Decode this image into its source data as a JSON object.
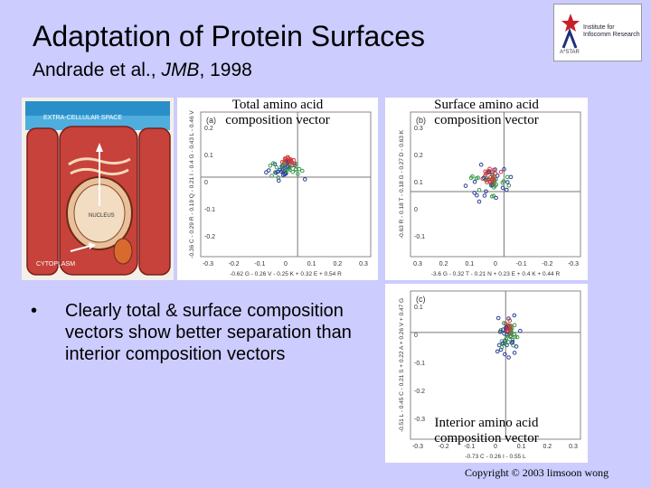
{
  "title": "Adaptation of Protein Surfaces",
  "subtitle": {
    "authors": "Andrade et al., ",
    "journal": "JMB",
    "year": ", 1998"
  },
  "logo": {
    "line1": "Institute for",
    "line2": "Infocomm Research",
    "sub": "A*STAR"
  },
  "cell_diagram": {
    "extracellular_label": "EXTRA-CELLULAR SPACE",
    "nucleus_label": "NUCLEUS",
    "cytoplasm_label": "CYTOPLASM"
  },
  "plots": {
    "a": {
      "panel_label": "(a)",
      "caption_line1": "Total amino acid",
      "caption_line2": "composition vector",
      "x_ticks": [
        "-0.3",
        "-0.2",
        "-0.1",
        "0",
        "0.1",
        "0.2",
        "0.3"
      ],
      "y_ticks": [
        "0.2",
        "0.1",
        "0",
        "-0.1",
        "-0.2"
      ],
      "x_axis_label": "-0.62 G - 0.26 V - 0.25 K + 0.32 E + 0.54 R",
      "y_axis_label": "-0.36 C - 0.29 R - 0.19 Q - 0.21 I - 0.4 G - 0.43 L - 0.46 V"
    },
    "b": {
      "panel_label": "(b)",
      "caption_line1": "Surface amino acid",
      "caption_line2": "composition vector",
      "x_ticks": [
        "0.3",
        "0.2",
        "0.1",
        "0",
        "-0.1",
        "-0.2",
        "-0.3"
      ],
      "y_ticks": [
        "0.3",
        "0.2",
        "0.1",
        "0",
        "-0.1"
      ],
      "x_axis_label": "-3.6 G - 0.32 T - 0.21 N + 0.23 E + 0.4 K + 0.44 R",
      "y_axis_label": "-0.63 R - 0.18 T - 0.18 G - 0.27 D - 0.63 K"
    },
    "c": {
      "panel_label": "(c)",
      "caption_line1": "Interior amino acid",
      "caption_line2": "composition vector",
      "x_ticks": [
        "-0.3",
        "-0.2",
        "-0.1",
        "0",
        "0.1",
        "0.2",
        "0.3"
      ],
      "y_ticks": [
        "0.1",
        "0",
        "-0.1",
        "-0.2",
        "-0.3"
      ],
      "x_axis_label": "-0.73 C - 0.26 I - 0.55 L",
      "y_axis_label": "-0.51 L - 0.45 C - 0.21 S + 0.22 A + 0.26 V + 0.47 G"
    }
  },
  "bullet": {
    "symbol": "•",
    "text": "Clearly total & surface composition vectors show better separation than interior composition vectors"
  },
  "copyright": "Copyright © 2003 limsoon wong",
  "colors": {
    "background": "#ccccff",
    "red_points": "#d23a3a",
    "green_points": "#3a9a4a",
    "blue_points": "#2a3f9a"
  }
}
